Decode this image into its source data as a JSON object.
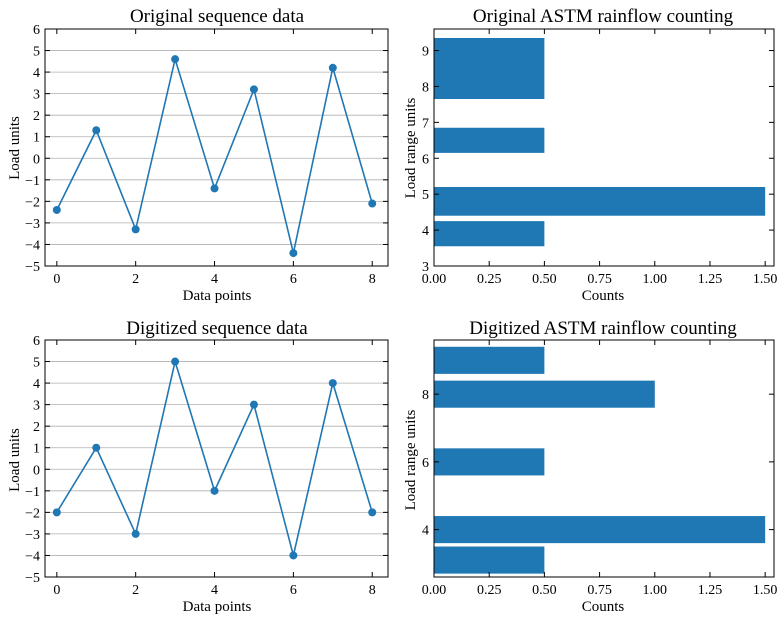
{
  "colors": {
    "series": "#1f77b4",
    "grid": "#b0b0b0",
    "axis": "#000000"
  },
  "chart_data": [
    {
      "type": "line",
      "title": "Original sequence data",
      "xlabel": "Data points",
      "ylabel": "Load units",
      "x": [
        0,
        1,
        2,
        3,
        4,
        5,
        6,
        7,
        8
      ],
      "y": [
        -2.4,
        1.3,
        -3.3,
        4.6,
        -1.4,
        3.2,
        -4.4,
        4.2,
        -2.1
      ],
      "xlim": [
        -0.3,
        8.4
      ],
      "ylim": [
        -5,
        6
      ],
      "xticks": [
        0,
        2,
        4,
        6,
        8
      ],
      "yticks": [
        -5,
        -4,
        -3,
        -2,
        -1,
        0,
        1,
        2,
        3,
        4,
        5,
        6
      ],
      "grid": "horizontal"
    },
    {
      "type": "bar",
      "orientation": "horizontal",
      "title": "Original ASTM rainflow counting",
      "xlabel": "Counts",
      "ylabel": "Load range units",
      "categories": [
        3.9,
        4.8,
        6.5,
        8.5
      ],
      "values": [
        0.5,
        1.5,
        0.5,
        0.5
      ],
      "bar_heights": [
        0.7,
        0.8,
        0.7,
        1.7
      ],
      "xlim": [
        0,
        1.54
      ],
      "ylim": [
        3,
        9.6
      ],
      "xticks": [
        0.0,
        0.25,
        0.5,
        0.75,
        1.0,
        1.25,
        1.5
      ],
      "xtick_labels": [
        "0.00",
        "0.25",
        "0.50",
        "0.75",
        "1.00",
        "1.25",
        "1.50"
      ],
      "yticks": [
        3,
        4,
        5,
        6,
        7,
        8,
        9
      ],
      "grid": "none"
    },
    {
      "type": "line",
      "title": "Digitized sequence data",
      "xlabel": "Data points",
      "ylabel": "Load units",
      "x": [
        0,
        1,
        2,
        3,
        4,
        5,
        6,
        7,
        8
      ],
      "y": [
        -2,
        1,
        -3,
        5,
        -1,
        3,
        -4,
        4,
        -2
      ],
      "xlim": [
        -0.3,
        8.4
      ],
      "ylim": [
        -5,
        6
      ],
      "xticks": [
        0,
        2,
        4,
        6,
        8
      ],
      "yticks": [
        -5,
        -4,
        -3,
        -2,
        -1,
        0,
        1,
        2,
        3,
        4,
        5,
        6
      ],
      "grid": "horizontal"
    },
    {
      "type": "bar",
      "orientation": "horizontal",
      "title": "Digitized ASTM rainflow counting",
      "xlabel": "Counts",
      "ylabel": "Load range units",
      "categories": [
        3.1,
        4,
        6,
        8,
        9
      ],
      "values": [
        0.5,
        1.5,
        0.5,
        1.0,
        0.5
      ],
      "bar_heights": [
        0.8,
        0.8,
        0.8,
        0.8,
        0.8
      ],
      "xlim": [
        0,
        1.54
      ],
      "ylim": [
        2.6,
        9.6
      ],
      "xticks": [
        0.0,
        0.25,
        0.5,
        0.75,
        1.0,
        1.25,
        1.5
      ],
      "xtick_labels": [
        "0.00",
        "0.25",
        "0.50",
        "0.75",
        "1.00",
        "1.25",
        "1.50"
      ],
      "yticks": [
        4,
        6,
        8
      ],
      "grid": "none"
    }
  ]
}
